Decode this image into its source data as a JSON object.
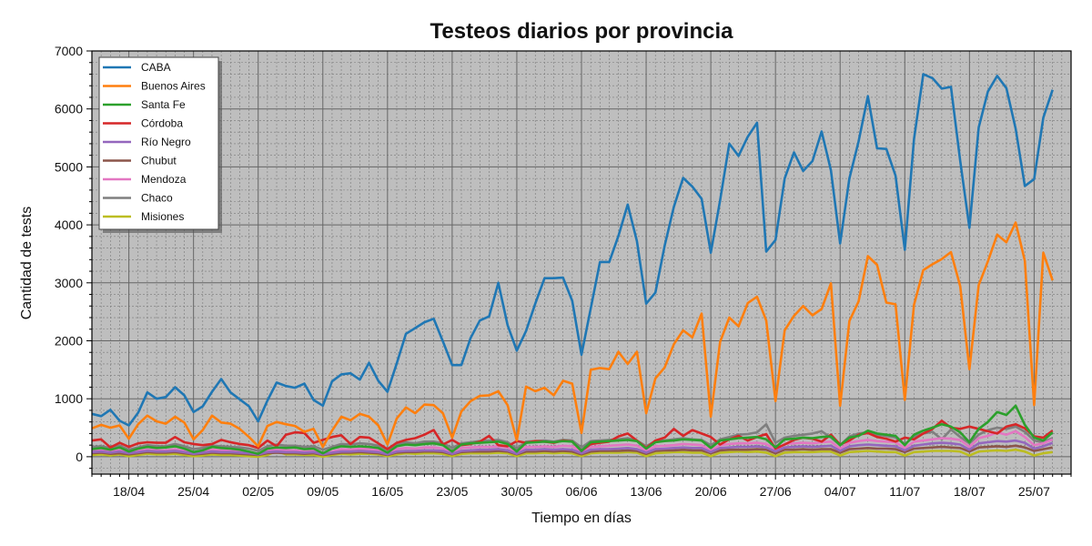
{
  "chart_data": {
    "type": "line",
    "title": "Testeos diarios por provincia",
    "xlabel": "Tiempo en días",
    "ylabel": "Cantidad de tests",
    "ylim": [
      -300,
      7000
    ],
    "yticks": [
      0,
      1000,
      2000,
      3000,
      4000,
      5000,
      6000,
      7000
    ],
    "x_start": "2020-04-14",
    "x_end": "2020-07-29",
    "xtick_labels": [
      "18/04",
      "25/04",
      "02/05",
      "09/05",
      "16/05",
      "23/05",
      "30/05",
      "06/06",
      "13/06",
      "20/06",
      "27/06",
      "04/07",
      "11/07",
      "18/07",
      "25/07"
    ],
    "xtick_dates": [
      "2020-04-18",
      "2020-04-25",
      "2020-05-02",
      "2020-05-09",
      "2020-05-16",
      "2020-05-23",
      "2020-05-30",
      "2020-06-06",
      "2020-06-13",
      "2020-06-20",
      "2020-06-27",
      "2020-07-04",
      "2020-07-11",
      "2020-07-18",
      "2020-07-25"
    ],
    "grid": true,
    "legend": "top-left",
    "background": "#bebebe",
    "series": [
      {
        "name": "CABA",
        "color": "#1f77b4",
        "values": [
          740,
          700,
          810,
          620,
          540,
          760,
          1110,
          1000,
          1030,
          1200,
          1060,
          770,
          870,
          1120,
          1340,
          1110,
          990,
          870,
          610,
          970,
          1280,
          1220,
          1190,
          1260,
          980,
          880,
          1300,
          1420,
          1440,
          1330,
          1620,
          1310,
          1120,
          1610,
          2120,
          2220,
          2320,
          2380,
          1990,
          1580,
          1580,
          2050,
          2350,
          2420,
          3000,
          2270,
          1830,
          2170,
          2640,
          3080,
          3080,
          3090,
          2690,
          1760,
          2560,
          3360,
          3360,
          3810,
          4350,
          3720,
          2640,
          2830,
          3640,
          4310,
          4810,
          4660,
          4450,
          3520,
          4420,
          5400,
          5190,
          5520,
          5760,
          3540,
          3740,
          4800,
          5250,
          4930,
          5100,
          5610,
          4940,
          3680,
          4800,
          5440,
          6220,
          5320,
          5310,
          4850,
          3570,
          5480,
          6600,
          6530,
          6350,
          6380,
          5100,
          3950,
          5680,
          6300,
          6570,
          6360,
          5660,
          4670,
          4790,
          5850,
          6330
        ]
      },
      {
        "name": "Buenos Aires",
        "color": "#ff7f0e",
        "values": [
          490,
          550,
          500,
          540,
          310,
          560,
          710,
          610,
          570,
          690,
          590,
          300,
          460,
          710,
          590,
          570,
          480,
          340,
          180,
          530,
          600,
          560,
          530,
          430,
          480,
          170,
          450,
          690,
          630,
          740,
          690,
          540,
          210,
          660,
          850,
          750,
          900,
          890,
          750,
          330,
          780,
          960,
          1050,
          1060,
          1130,
          890,
          280,
          1210,
          1130,
          1190,
          1060,
          1310,
          1260,
          410,
          1500,
          1530,
          1510,
          1810,
          1600,
          1810,
          750,
          1350,
          1540,
          1940,
          2180,
          2060,
          2470,
          690,
          1980,
          2400,
          2250,
          2650,
          2760,
          2350,
          960,
          2180,
          2430,
          2600,
          2440,
          2550,
          2990,
          880,
          2340,
          2680,
          3460,
          3310,
          2660,
          2630,
          980,
          2620,
          3220,
          3320,
          3410,
          3530,
          2940,
          1510,
          2960,
          3370,
          3830,
          3700,
          4040,
          3380,
          890,
          3520,
          3040
        ]
      },
      {
        "name": "Santa Fe",
        "color": "#2ca02c",
        "values": [
          130,
          150,
          120,
          160,
          90,
          140,
          170,
          150,
          160,
          180,
          140,
          80,
          110,
          170,
          150,
          140,
          120,
          90,
          50,
          140,
          160,
          150,
          160,
          130,
          140,
          60,
          140,
          180,
          170,
          180,
          170,
          150,
          70,
          180,
          210,
          200,
          220,
          230,
          200,
          90,
          210,
          230,
          240,
          250,
          260,
          220,
          90,
          240,
          250,
          260,
          250,
          270,
          260,
          100,
          250,
          260,
          270,
          280,
          290,
          270,
          140,
          250,
          270,
          280,
          300,
          290,
          280,
          150,
          280,
          300,
          320,
          330,
          340,
          300,
          160,
          300,
          310,
          330,
          320,
          340,
          350,
          200,
          330,
          360,
          450,
          400,
          380,
          360,
          200,
          380,
          450,
          500,
          560,
          520,
          420,
          250,
          480,
          600,
          770,
          720,
          880,
          550,
          330,
          280,
          420
        ]
      },
      {
        "name": "Córdoba",
        "color": "#d62728",
        "values": [
          280,
          300,
          160,
          240,
          170,
          230,
          250,
          240,
          240,
          340,
          250,
          220,
          200,
          220,
          290,
          250,
          220,
          200,
          150,
          280,
          180,
          380,
          420,
          410,
          240,
          290,
          340,
          370,
          220,
          340,
          330,
          230,
          130,
          240,
          290,
          320,
          380,
          460,
          210,
          290,
          200,
          220,
          260,
          360,
          200,
          180,
          270,
          240,
          270,
          260,
          240,
          280,
          260,
          100,
          220,
          240,
          260,
          350,
          400,
          280,
          150,
          280,
          330,
          480,
          360,
          460,
          400,
          340,
          210,
          300,
          360,
          280,
          340,
          390,
          140,
          210,
          290,
          330,
          310,
          260,
          380,
          210,
          280,
          380,
          410,
          340,
          310,
          260,
          330,
          300,
          400,
          480,
          620,
          500,
          480,
          520,
          480,
          440,
          400,
          520,
          560,
          490,
          350,
          330,
          450
        ]
      },
      {
        "name": "Río Negro",
        "color": "#9467bd",
        "values": [
          80,
          90,
          70,
          90,
          60,
          80,
          100,
          90,
          90,
          100,
          80,
          50,
          70,
          90,
          80,
          80,
          70,
          60,
          40,
          80,
          90,
          80,
          80,
          70,
          80,
          40,
          70,
          90,
          90,
          100,
          90,
          80,
          40,
          90,
          100,
          100,
          110,
          110,
          100,
          50,
          100,
          110,
          120,
          120,
          130,
          110,
          50,
          120,
          120,
          130,
          120,
          130,
          120,
          60,
          120,
          130,
          130,
          140,
          150,
          130,
          70,
          130,
          140,
          150,
          160,
          150,
          150,
          80,
          150,
          160,
          170,
          170,
          180,
          160,
          90,
          160,
          170,
          180,
          170,
          180,
          190,
          100,
          180,
          200,
          210,
          200,
          190,
          180,
          110,
          190,
          210,
          230,
          240,
          230,
          210,
          120,
          230,
          250,
          270,
          260,
          280,
          240,
          140,
          180,
          240
        ]
      },
      {
        "name": "Chubut",
        "color": "#8c564b",
        "values": [
          60,
          70,
          50,
          60,
          40,
          60,
          80,
          70,
          70,
          80,
          60,
          40,
          50,
          70,
          60,
          60,
          50,
          40,
          30,
          60,
          70,
          60,
          60,
          50,
          60,
          30,
          50,
          70,
          70,
          80,
          70,
          60,
          30,
          70,
          80,
          80,
          90,
          90,
          80,
          40,
          80,
          90,
          90,
          90,
          100,
          90,
          40,
          90,
          90,
          100,
          90,
          100,
          90,
          40,
          90,
          100,
          100,
          100,
          110,
          100,
          50,
          100,
          110,
          110,
          120,
          110,
          110,
          60,
          110,
          120,
          120,
          120,
          130,
          120,
          60,
          120,
          120,
          130,
          120,
          130,
          130,
          70,
          130,
          140,
          150,
          140,
          140,
          130,
          80,
          140,
          150,
          160,
          170,
          160,
          150,
          90,
          160,
          170,
          180,
          170,
          190,
          160,
          100,
          130,
          160
        ]
      },
      {
        "name": "Mendoza",
        "color": "#e377c2",
        "values": [
          100,
          110,
          90,
          110,
          70,
          100,
          120,
          110,
          110,
          130,
          100,
          60,
          90,
          120,
          110,
          100,
          90,
          70,
          40,
          100,
          120,
          110,
          110,
          90,
          100,
          50,
          90,
          130,
          120,
          140,
          130,
          110,
          50,
          130,
          150,
          140,
          160,
          160,
          140,
          70,
          150,
          160,
          170,
          170,
          180,
          160,
          70,
          170,
          170,
          180,
          170,
          190,
          180,
          80,
          170,
          180,
          190,
          200,
          210,
          190,
          100,
          180,
          190,
          200,
          220,
          210,
          200,
          110,
          200,
          220,
          230,
          230,
          240,
          220,
          120,
          220,
          230,
          240,
          230,
          250,
          260,
          140,
          240,
          270,
          290,
          270,
          260,
          250,
          150,
          260,
          280,
          300,
          320,
          310,
          290,
          170,
          320,
          360,
          420,
          380,
          440,
          340,
          200,
          230,
          300
        ]
      },
      {
        "name": "Chaco",
        "color": "#7f7f7f",
        "values": [
          170,
          180,
          150,
          190,
          120,
          160,
          200,
          180,
          180,
          220,
          180,
          130,
          150,
          190,
          180,
          170,
          160,
          140,
          100,
          180,
          210,
          190,
          190,
          170,
          180,
          120,
          170,
          220,
          210,
          230,
          220,
          190,
          120,
          210,
          250,
          230,
          260,
          260,
          230,
          150,
          230,
          250,
          270,
          280,
          290,
          250,
          140,
          260,
          270,
          280,
          260,
          290,
          280,
          160,
          270,
          280,
          290,
          300,
          320,
          280,
          180,
          270,
          280,
          300,
          320,
          300,
          290,
          200,
          300,
          340,
          380,
          390,
          420,
          560,
          240,
          330,
          360,
          380,
          400,
          440,
          330,
          200,
          350,
          400,
          420,
          380,
          360,
          330,
          220,
          340,
          400,
          430,
          300,
          470,
          340,
          230,
          380,
          460,
          500,
          480,
          520,
          430,
          280,
          250,
          320
        ]
      },
      {
        "name": "Misiones",
        "color": "#bcbd22",
        "values": [
          30,
          40,
          20,
          40,
          10,
          30,
          50,
          40,
          40,
          50,
          30,
          10,
          20,
          40,
          30,
          30,
          20,
          10,
          0,
          30,
          100,
          40,
          40,
          30,
          30,
          0,
          30,
          50,
          40,
          50,
          50,
          40,
          10,
          40,
          60,
          50,
          60,
          60,
          50,
          10,
          50,
          60,
          60,
          60,
          70,
          60,
          10,
          60,
          60,
          70,
          60,
          70,
          60,
          10,
          60,
          70,
          70,
          70,
          80,
          70,
          10,
          60,
          70,
          80,
          80,
          70,
          70,
          10,
          70,
          80,
          90,
          80,
          90,
          70,
          10,
          70,
          80,
          80,
          80,
          90,
          90,
          20,
          80,
          90,
          100,
          90,
          80,
          80,
          20,
          80,
          90,
          100,
          100,
          100,
          90,
          20,
          90,
          100,
          110,
          100,
          120,
          90,
          20,
          60,
          80
        ]
      }
    ]
  }
}
